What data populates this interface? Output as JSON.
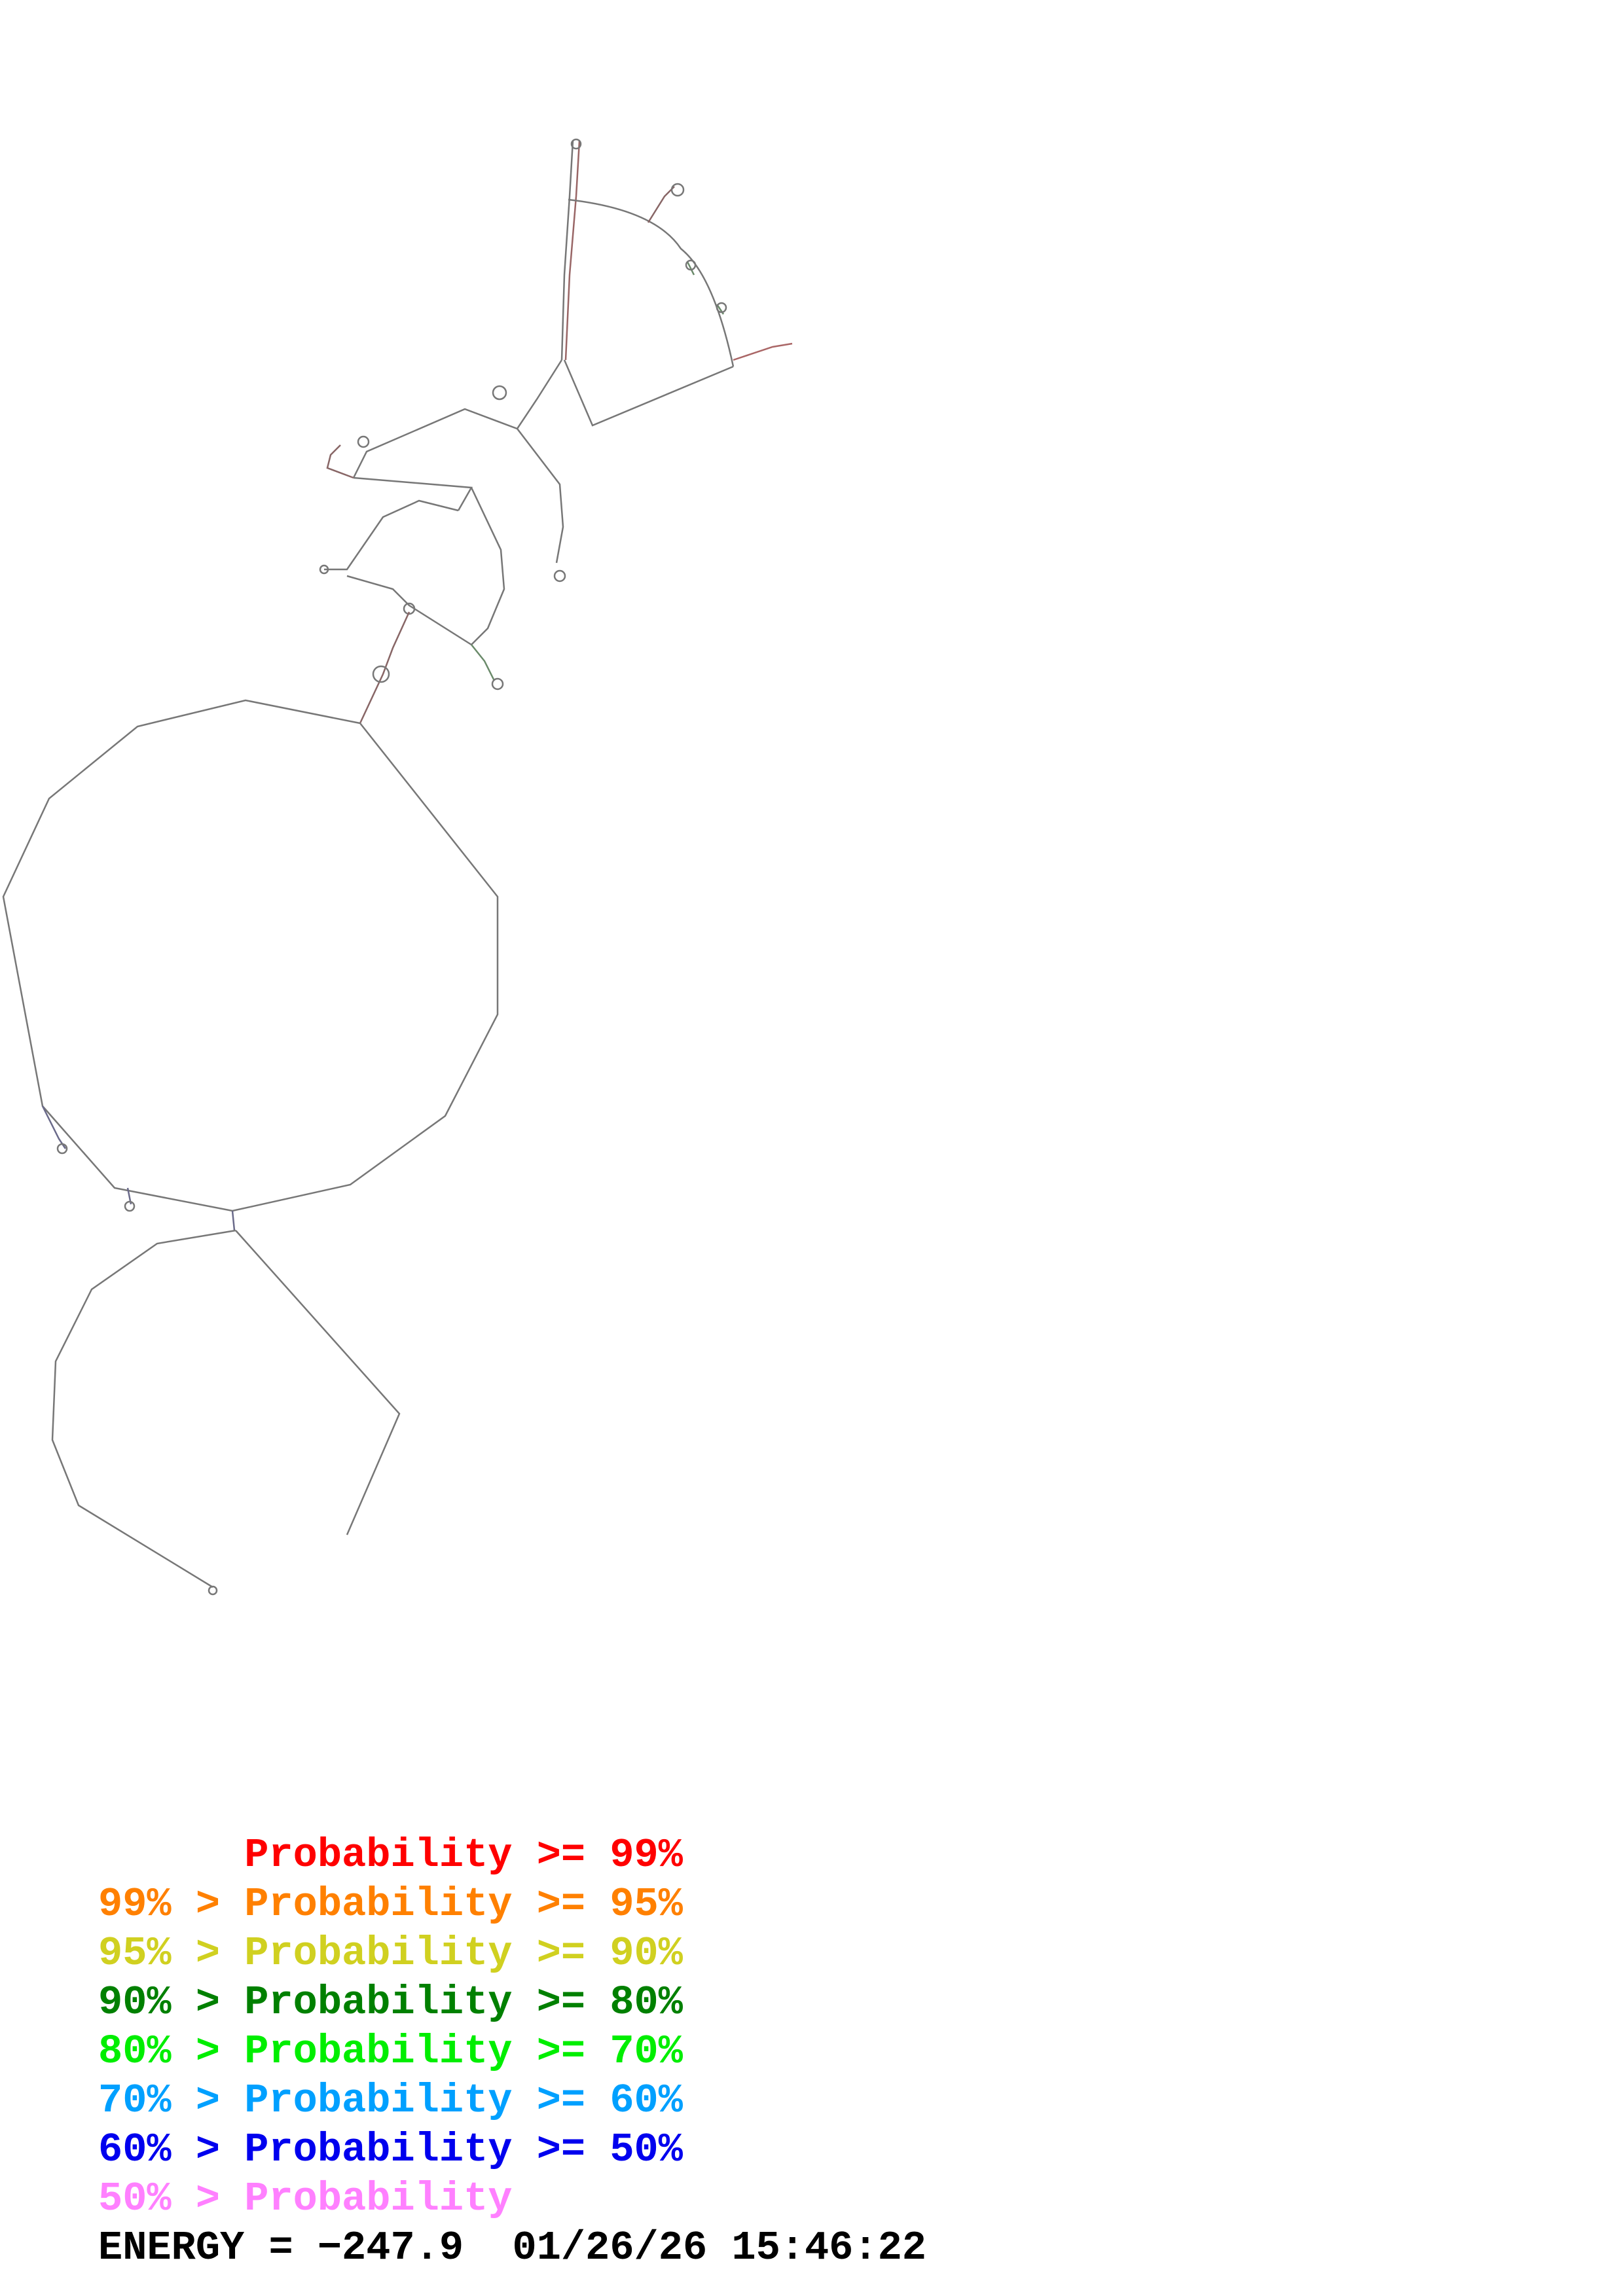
{
  "legend": [
    {
      "text": "      Probability >= 99%",
      "color": "#ff0000"
    },
    {
      "text": "99% > Probability >= 95%",
      "color": "#ff8000"
    },
    {
      "text": "95% > Probability >= 90%",
      "color": "#d0d020"
    },
    {
      "text": "90% > Probability >= 80%",
      "color": "#008000"
    },
    {
      "text": "80% > Probability >= 70%",
      "color": "#00ee00"
    },
    {
      "text": "70% > Probability >= 60%",
      "color": "#00a0ff"
    },
    {
      "text": "60% > Probability >= 50%",
      "color": "#0000ee"
    },
    {
      "text": "50% > Probability",
      "color": "#ff80ff"
    }
  ],
  "energy_label": "ENERGY = −247.9  01/26/26 15:46:22",
  "colors": {
    "backbone": "#555555",
    "pair_red": "#ff0000",
    "pair_orange": "#ff8000",
    "pair_green": "#008000",
    "pair_blue": "#0000ee",
    "pair_pink": "#ff80ff"
  }
}
